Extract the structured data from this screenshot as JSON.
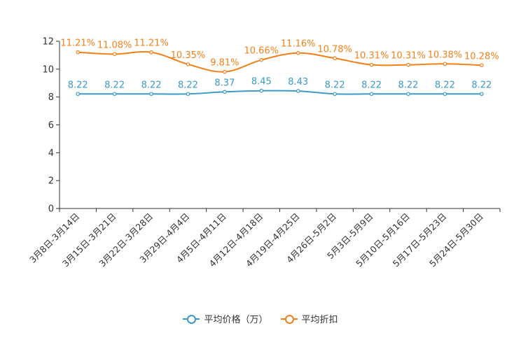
{
  "chart_data": {
    "type": "line",
    "categories": [
      "3月8日-3月14日",
      "3月15日-3月21日",
      "3月22日-3月28日",
      "3月29日-4月4日",
      "4月5日-4月11日",
      "4月12日-4月18日",
      "4月19日-4月25日",
      "4月26日-5月2日",
      "5月3日-5月9日",
      "5月10日-5月16日",
      "5月17日-5月23日",
      "5月24日-5月30日"
    ],
    "ylim": [
      0,
      12
    ],
    "yticks": [
      "0",
      "2",
      "4",
      "6",
      "8",
      "10",
      "12"
    ],
    "series": [
      {
        "name": "平均价格（万）",
        "color": "#3a9ac8",
        "values": [
          8.22,
          8.22,
          8.22,
          8.22,
          8.37,
          8.45,
          8.43,
          8.22,
          8.22,
          8.22,
          8.22,
          8.22
        ],
        "labels": [
          "8.22",
          "8.22",
          "8.22",
          "8.22",
          "8.37",
          "8.45",
          "8.43",
          "8.22",
          "8.22",
          "8.22",
          "8.22",
          "8.22"
        ]
      },
      {
        "name": "平均折扣",
        "color": "#f57f17",
        "values": [
          11.21,
          11.08,
          11.21,
          10.35,
          9.81,
          10.66,
          11.16,
          10.78,
          10.31,
          10.31,
          10.38,
          10.28
        ],
        "labels": [
          "11.21%",
          "11.08%",
          "11.21%",
          "10.35%",
          "9.81%",
          "10.66%",
          "11.16%",
          "10.78%",
          "10.31%",
          "10.31%",
          "10.38%",
          "10.28%"
        ]
      }
    ],
    "title": "",
    "xlabel": "",
    "ylabel": "",
    "legend_position": "bottom-center"
  }
}
